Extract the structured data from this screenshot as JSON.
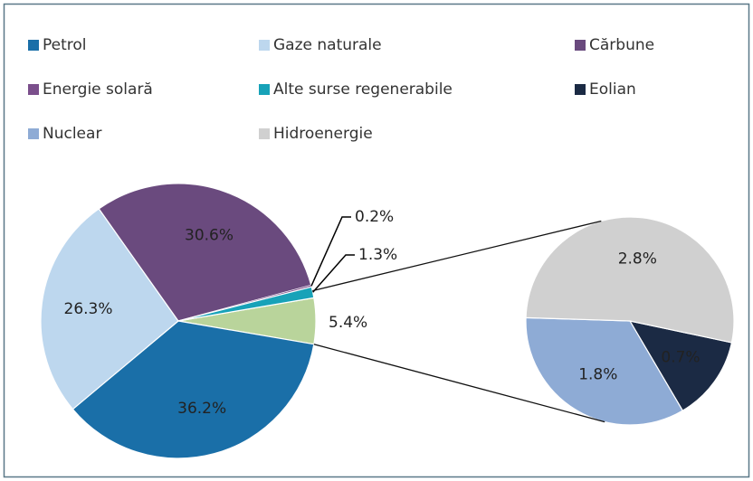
{
  "chart_data": {
    "type": "pie-of-pie",
    "slices": [
      {
        "name": "Petrol",
        "value": 36.2,
        "value_label": "36.2%",
        "color": "#1a6fa8",
        "group": "main"
      },
      {
        "name": "Gaze naturale",
        "value": 26.3,
        "value_label": "26.3%",
        "color": "#bdd7ee",
        "group": "main"
      },
      {
        "name": "Cărbune",
        "value": 30.6,
        "value_label": "30.6%",
        "color": "#6a4a7e",
        "group": "main"
      },
      {
        "name": "Energie solară",
        "value": 0.2,
        "value_label": "0.2%",
        "color": "#7b4f8c",
        "group": "main"
      },
      {
        "name": "Alte surse regenerabile",
        "value": 1.3,
        "value_label": "1.3%",
        "color": "#17a2b8",
        "group": "main"
      },
      {
        "name": "Eolian",
        "value": 0.7,
        "value_label": "0.7%",
        "color": "#1b2a44",
        "group": "secondary"
      },
      {
        "name": "Nuclear",
        "value": 1.8,
        "value_label": "1.8%",
        "color": "#8eabd5",
        "group": "secondary"
      },
      {
        "name": "Hidroenergie",
        "value": 2.8,
        "value_label": "2.8%",
        "color": "#d0d0d0",
        "group": "secondary"
      }
    ],
    "other": {
      "value": 5.4,
      "value_label": "5.4%",
      "color": "#b9d49b"
    }
  }
}
